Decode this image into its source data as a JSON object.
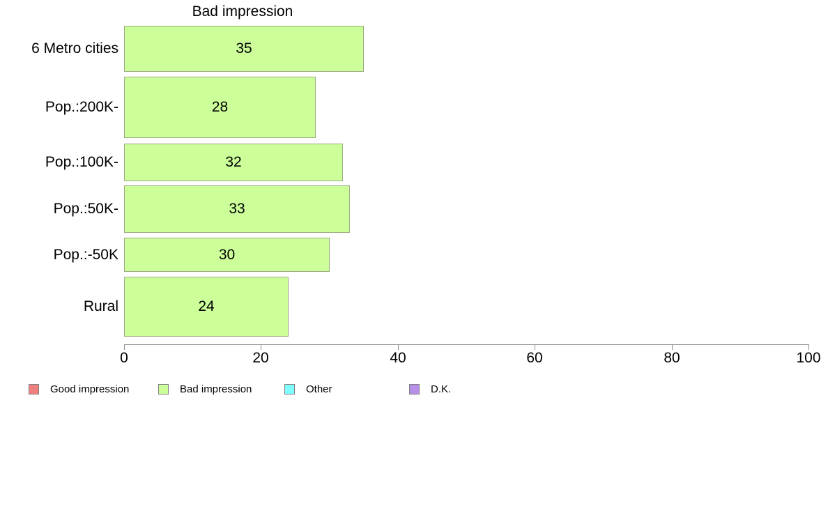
{
  "chart_data": {
    "type": "bar",
    "orientation": "horizontal",
    "title": "Bad impression",
    "categories": [
      "6 Metro cities",
      "Pop.:200K-",
      "Pop.:100K-",
      "Pop.:50K-",
      "Pop.:-50K",
      "Rural"
    ],
    "values": [
      35,
      28,
      32,
      33,
      30,
      24
    ],
    "value_labels": [
      "35",
      "28",
      "32",
      "33",
      "30",
      "24"
    ],
    "xlim": [
      0,
      100
    ],
    "x_ticks": [
      0,
      20,
      40,
      60,
      80,
      100
    ],
    "grid": false,
    "legend_position": "bottom",
    "bar_fill_color": "#ccff99",
    "bar_border_color": "#9cab80",
    "axis_color": "#8c8c8c",
    "text_color": "#000000",
    "legend": [
      {
        "label": "Good impression",
        "color": "#f08080"
      },
      {
        "label": "Bad impression",
        "color": "#ccff99"
      },
      {
        "label": "Other",
        "color": "#80ffff"
      },
      {
        "label": "D.K.",
        "color": "#b88fe8"
      }
    ]
  }
}
